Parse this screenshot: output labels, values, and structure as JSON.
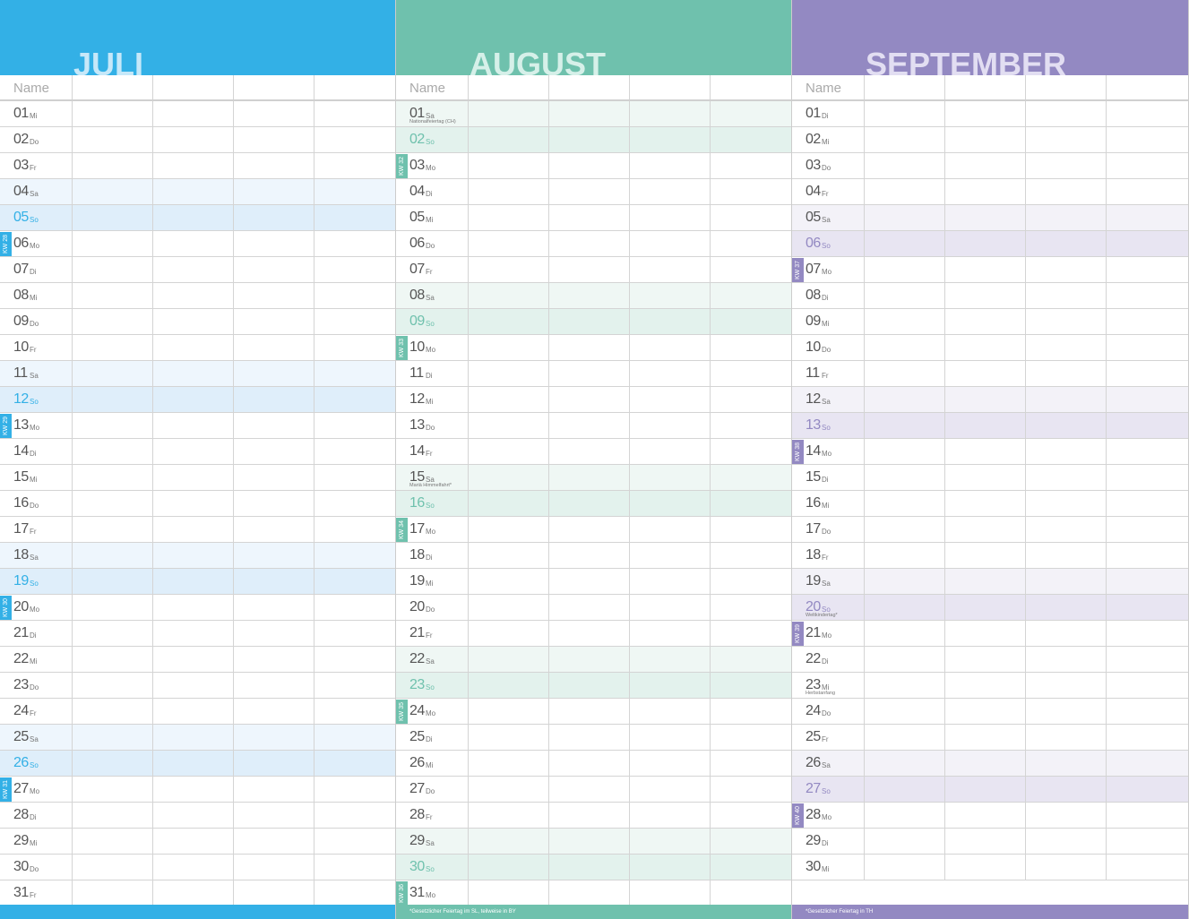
{
  "name_label": "Name",
  "months": [
    {
      "title": "JULI",
      "accent": "#33b0e6",
      "title_color": "#c6e8f9",
      "sat_bg": "#eef6fd",
      "sun_bg": "#dfeefa",
      "footnote": "",
      "days": [
        [
          "01",
          "Mi"
        ],
        [
          "02",
          "Do"
        ],
        [
          "03",
          "Fr"
        ],
        [
          "04",
          "Sa"
        ],
        [
          "05",
          "So"
        ],
        [
          "06",
          "Mo",
          "",
          "KW 28"
        ],
        [
          "07",
          "Di"
        ],
        [
          "08",
          "Mi"
        ],
        [
          "09",
          "Do"
        ],
        [
          "10",
          "Fr"
        ],
        [
          "11",
          "Sa"
        ],
        [
          "12",
          "So"
        ],
        [
          "13",
          "Mo",
          "",
          "KW 29"
        ],
        [
          "14",
          "Di"
        ],
        [
          "15",
          "Mi"
        ],
        [
          "16",
          "Do"
        ],
        [
          "17",
          "Fr"
        ],
        [
          "18",
          "Sa"
        ],
        [
          "19",
          "So"
        ],
        [
          "20",
          "Mo",
          "",
          "KW 30"
        ],
        [
          "21",
          "Di"
        ],
        [
          "22",
          "Mi"
        ],
        [
          "23",
          "Do"
        ],
        [
          "24",
          "Fr"
        ],
        [
          "25",
          "Sa"
        ],
        [
          "26",
          "So"
        ],
        [
          "27",
          "Mo",
          "",
          "KW 31"
        ],
        [
          "28",
          "Di"
        ],
        [
          "29",
          "Mi"
        ],
        [
          "30",
          "Do"
        ],
        [
          "31",
          "Fr"
        ]
      ]
    },
    {
      "title": "AUGUST",
      "accent": "#6fc1ad",
      "title_color": "#d6f0e9",
      "sat_bg": "#eff7f4",
      "sun_bg": "#e3f2ed",
      "footnote": "*Gesetzlicher Feiertag im SL, teilweise in BY",
      "days": [
        [
          "01",
          "Sa",
          "Nationalfeiertag (CH)"
        ],
        [
          "02",
          "So"
        ],
        [
          "03",
          "Mo",
          "",
          "KW 32"
        ],
        [
          "04",
          "Di"
        ],
        [
          "05",
          "Mi"
        ],
        [
          "06",
          "Do"
        ],
        [
          "07",
          "Fr"
        ],
        [
          "08",
          "Sa"
        ],
        [
          "09",
          "So"
        ],
        [
          "10",
          "Mo",
          "",
          "KW 33"
        ],
        [
          "11",
          "Di"
        ],
        [
          "12",
          "Mi"
        ],
        [
          "13",
          "Do"
        ],
        [
          "14",
          "Fr"
        ],
        [
          "15",
          "Sa",
          "Mariä Himmelfahrt*"
        ],
        [
          "16",
          "So"
        ],
        [
          "17",
          "Mo",
          "",
          "KW 34"
        ],
        [
          "18",
          "Di"
        ],
        [
          "19",
          "Mi"
        ],
        [
          "20",
          "Do"
        ],
        [
          "21",
          "Fr"
        ],
        [
          "22",
          "Sa"
        ],
        [
          "23",
          "So"
        ],
        [
          "24",
          "Mo",
          "",
          "KW 35"
        ],
        [
          "25",
          "Di"
        ],
        [
          "26",
          "Mi"
        ],
        [
          "27",
          "Do"
        ],
        [
          "28",
          "Fr"
        ],
        [
          "29",
          "Sa"
        ],
        [
          "30",
          "So"
        ],
        [
          "31",
          "Mo",
          "",
          "KW 36"
        ]
      ]
    },
    {
      "title": "SEPTEMBER",
      "accent": "#9389c2",
      "title_color": "#e2def2",
      "sat_bg": "#f3f2f8",
      "sun_bg": "#e8e5f2",
      "footnote": "*Gesetzlicher Feiertag in TH",
      "days": [
        [
          "01",
          "Di"
        ],
        [
          "02",
          "Mi"
        ],
        [
          "03",
          "Do"
        ],
        [
          "04",
          "Fr"
        ],
        [
          "05",
          "Sa"
        ],
        [
          "06",
          "So"
        ],
        [
          "07",
          "Mo",
          "",
          "KW 37"
        ],
        [
          "08",
          "Di"
        ],
        [
          "09",
          "Mi"
        ],
        [
          "10",
          "Do"
        ],
        [
          "11",
          "Fr"
        ],
        [
          "12",
          "Sa"
        ],
        [
          "13",
          "So"
        ],
        [
          "14",
          "Mo",
          "",
          "KW 38"
        ],
        [
          "15",
          "Di"
        ],
        [
          "16",
          "Mi"
        ],
        [
          "17",
          "Do"
        ],
        [
          "18",
          "Fr"
        ],
        [
          "19",
          "Sa"
        ],
        [
          "20",
          "So",
          "Weltkindertag*"
        ],
        [
          "21",
          "Mo",
          "",
          "KW 39"
        ],
        [
          "22",
          "Di"
        ],
        [
          "23",
          "Mi",
          "Herbstanfang"
        ],
        [
          "24",
          "Do"
        ],
        [
          "25",
          "Fr"
        ],
        [
          "26",
          "Sa"
        ],
        [
          "27",
          "So"
        ],
        [
          "28",
          "Mo",
          "",
          "KW 40"
        ],
        [
          "29",
          "Di"
        ],
        [
          "30",
          "Mi"
        ]
      ]
    }
  ]
}
